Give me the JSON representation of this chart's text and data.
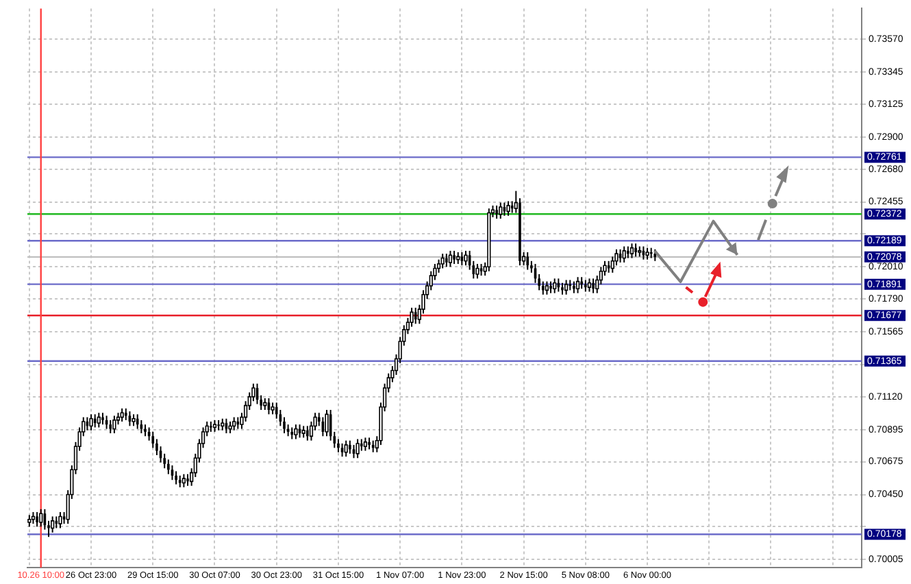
{
  "chart_data": {
    "type": "candlestick",
    "categories": [
      null,
      null,
      null,
      "10.26 10:00",
      null,
      null,
      null,
      null,
      null,
      null,
      null,
      null,
      null,
      null,
      null,
      null,
      "26 Oct 23:00",
      null,
      null,
      null,
      null,
      null,
      null,
      null,
      null,
      null,
      null,
      null,
      null,
      null,
      null,
      null,
      "29 Oct 15:00",
      null,
      null,
      null,
      null,
      null,
      null,
      null,
      null,
      null,
      null,
      null,
      null,
      null,
      null,
      null,
      "30 Oct 07:00",
      null,
      null,
      null,
      null,
      null,
      null,
      null,
      null,
      null,
      null,
      null,
      null,
      null,
      null,
      null,
      "30 Oct 23:00",
      null,
      null,
      null,
      null,
      null,
      null,
      null,
      null,
      null,
      null,
      null,
      null,
      null,
      null,
      null,
      "31 Oct 15:00",
      null,
      null,
      null,
      null,
      null,
      null,
      null,
      null,
      null,
      null,
      null,
      null,
      null,
      null,
      null,
      "1 Nov 07:00",
      null,
      null,
      null,
      null,
      null,
      null,
      null,
      null,
      null,
      null,
      null,
      null,
      null,
      null,
      null,
      "1 Nov 23:00",
      null,
      null,
      null,
      null,
      null,
      null,
      null,
      null,
      null,
      null,
      null,
      null,
      null,
      null,
      null,
      "2 Nov 15:00",
      null,
      null,
      null,
      null,
      null,
      null,
      null,
      null,
      null,
      null,
      null,
      null,
      null,
      null,
      null,
      "5 Nov 08:00",
      null,
      null,
      null,
      null,
      null,
      null,
      null,
      null,
      null,
      null,
      null,
      null,
      null,
      null,
      null,
      "6 Nov 00:00",
      null,
      null,
      null,
      null,
      null,
      null,
      null,
      null,
      null,
      null,
      null,
      null,
      null,
      null,
      null,
      null,
      null,
      null,
      null,
      null,
      null,
      null,
      null,
      null,
      null,
      null,
      null,
      null,
      null,
      null,
      null,
      null,
      null,
      null,
      null,
      null,
      null,
      null,
      null,
      null,
      null,
      null,
      null,
      null,
      null,
      null,
      null,
      null,
      null,
      null,
      null,
      null,
      null,
      null,
      null
    ],
    "ohlc": [
      [
        0.7026,
        0.7031,
        0.7023,
        0.7028
      ],
      [
        0.7028,
        0.7033,
        0.7025,
        0.703
      ],
      [
        0.703,
        0.7033,
        0.7023,
        0.7026
      ],
      [
        0.7026,
        0.7035,
        0.7023,
        0.7032
      ],
      [
        0.7032,
        0.7035,
        0.7021,
        0.7024
      ],
      [
        0.7024,
        0.7027,
        0.7016,
        0.7022
      ],
      [
        0.7022,
        0.703,
        0.7019,
        0.7027
      ],
      [
        0.7027,
        0.703,
        0.7022,
        0.7025
      ],
      [
        0.7025,
        0.7033,
        0.7022,
        0.703
      ],
      [
        0.703,
        0.7033,
        0.7025,
        0.7028
      ],
      [
        0.7028,
        0.7048,
        0.7025,
        0.7045
      ],
      [
        0.7045,
        0.7065,
        0.7042,
        0.7062
      ],
      [
        0.7062,
        0.7081,
        0.7059,
        0.7078
      ],
      [
        0.7078,
        0.7091,
        0.7075,
        0.7088
      ],
      [
        0.7088,
        0.7098,
        0.7085,
        0.7095
      ],
      [
        0.7095,
        0.7098,
        0.7089,
        0.7092
      ],
      [
        0.7092,
        0.71,
        0.7089,
        0.7097
      ],
      [
        0.7097,
        0.71,
        0.7091,
        0.7094
      ],
      [
        0.7094,
        0.7101,
        0.7091,
        0.7098
      ],
      [
        0.7098,
        0.7101,
        0.7093,
        0.7096
      ],
      [
        0.7096,
        0.7099,
        0.709,
        0.7093
      ],
      [
        0.7093,
        0.7096,
        0.7087,
        0.709
      ],
      [
        0.709,
        0.7099,
        0.7087,
        0.7096
      ],
      [
        0.7096,
        0.7101,
        0.7093,
        0.7098
      ],
      [
        0.7098,
        0.7104,
        0.7095,
        0.7101
      ],
      [
        0.7101,
        0.7104,
        0.7096,
        0.7099
      ],
      [
        0.7099,
        0.7102,
        0.7092,
        0.7095
      ],
      [
        0.7095,
        0.71,
        0.7092,
        0.7097
      ],
      [
        0.7097,
        0.71,
        0.709,
        0.7093
      ],
      [
        0.7093,
        0.7096,
        0.7087,
        0.709
      ],
      [
        0.709,
        0.7093,
        0.7085,
        0.7088
      ],
      [
        0.7088,
        0.7091,
        0.7082,
        0.7085
      ],
      [
        0.7085,
        0.7088,
        0.7077,
        0.708
      ],
      [
        0.708,
        0.7083,
        0.7072,
        0.7075
      ],
      [
        0.7075,
        0.7078,
        0.7067,
        0.707
      ],
      [
        0.707,
        0.7073,
        0.7063,
        0.7066
      ],
      [
        0.7066,
        0.7069,
        0.7059,
        0.7062
      ],
      [
        0.7062,
        0.7065,
        0.7055,
        0.7058
      ],
      [
        0.7058,
        0.7061,
        0.7052,
        0.7055
      ],
      [
        0.7055,
        0.7058,
        0.705,
        0.7053
      ],
      [
        0.7053,
        0.7059,
        0.705,
        0.7056
      ],
      [
        0.7056,
        0.7059,
        0.7051,
        0.7054
      ],
      [
        0.7054,
        0.7063,
        0.7051,
        0.706
      ],
      [
        0.706,
        0.7073,
        0.7057,
        0.707
      ],
      [
        0.707,
        0.7083,
        0.7067,
        0.708
      ],
      [
        0.708,
        0.7091,
        0.7077,
        0.7088
      ],
      [
        0.7088,
        0.7095,
        0.7085,
        0.7092
      ],
      [
        0.7092,
        0.7095,
        0.7088,
        0.7091
      ],
      [
        0.7091,
        0.7096,
        0.7088,
        0.7093
      ],
      [
        0.7093,
        0.7096,
        0.7089,
        0.7092
      ],
      [
        0.7092,
        0.7097,
        0.7089,
        0.7094
      ],
      [
        0.7094,
        0.7097,
        0.7087,
        0.709
      ],
      [
        0.709,
        0.7095,
        0.7087,
        0.7092
      ],
      [
        0.7092,
        0.7098,
        0.7089,
        0.7095
      ],
      [
        0.7095,
        0.7098,
        0.709,
        0.7093
      ],
      [
        0.7093,
        0.7101,
        0.709,
        0.7098
      ],
      [
        0.7098,
        0.7109,
        0.7095,
        0.7106
      ],
      [
        0.7106,
        0.7115,
        0.7103,
        0.7112
      ],
      [
        0.7112,
        0.7121,
        0.7109,
        0.7118
      ],
      [
        0.7118,
        0.7121,
        0.7107,
        0.711
      ],
      [
        0.711,
        0.7113,
        0.7103,
        0.7106
      ],
      [
        0.7106,
        0.7111,
        0.7103,
        0.7108
      ],
      [
        0.7108,
        0.7111,
        0.71,
        0.7103
      ],
      [
        0.7103,
        0.7108,
        0.71,
        0.7105
      ],
      [
        0.7105,
        0.7108,
        0.7097,
        0.71
      ],
      [
        0.71,
        0.7103,
        0.7092,
        0.7095
      ],
      [
        0.7095,
        0.7098,
        0.7087,
        0.709
      ],
      [
        0.709,
        0.7093,
        0.7085,
        0.7088
      ],
      [
        0.7088,
        0.7091,
        0.7083,
        0.7086
      ],
      [
        0.7086,
        0.7093,
        0.7083,
        0.709
      ],
      [
        0.709,
        0.7093,
        0.7084,
        0.7087
      ],
      [
        0.7087,
        0.7092,
        0.7084,
        0.7089
      ],
      [
        0.7089,
        0.7092,
        0.7082,
        0.7085
      ],
      [
        0.7085,
        0.7095,
        0.7082,
        0.7092
      ],
      [
        0.7092,
        0.7101,
        0.7089,
        0.7098
      ],
      [
        0.7098,
        0.7101,
        0.7092,
        0.7095
      ],
      [
        0.7095,
        0.7098,
        0.7085,
        0.7088
      ],
      [
        0.7088,
        0.7103,
        0.7085,
        0.71
      ],
      [
        0.71,
        0.7103,
        0.7082,
        0.7085
      ],
      [
        0.7085,
        0.7088,
        0.7077,
        0.708
      ],
      [
        0.708,
        0.7083,
        0.7074,
        0.7077
      ],
      [
        0.7077,
        0.708,
        0.7071,
        0.7074
      ],
      [
        0.7074,
        0.7082,
        0.7071,
        0.7079
      ],
      [
        0.7079,
        0.7082,
        0.7073,
        0.7076
      ],
      [
        0.7076,
        0.7079,
        0.707,
        0.7073
      ],
      [
        0.7073,
        0.7083,
        0.707,
        0.708
      ],
      [
        0.708,
        0.7083,
        0.7075,
        0.7078
      ],
      [
        0.7078,
        0.7084,
        0.7075,
        0.7081
      ],
      [
        0.7081,
        0.7084,
        0.7076,
        0.7079
      ],
      [
        0.7079,
        0.7082,
        0.7074,
        0.7077
      ],
      [
        0.7077,
        0.7085,
        0.7074,
        0.7082
      ],
      [
        0.7082,
        0.7108,
        0.7079,
        0.7105
      ],
      [
        0.7105,
        0.7121,
        0.7102,
        0.7118
      ],
      [
        0.7118,
        0.7128,
        0.7115,
        0.7125
      ],
      [
        0.7125,
        0.7133,
        0.7122,
        0.713
      ],
      [
        0.713,
        0.7141,
        0.7127,
        0.7138
      ],
      [
        0.7138,
        0.7153,
        0.7135,
        0.715
      ],
      [
        0.715,
        0.7161,
        0.7147,
        0.7158
      ],
      [
        0.7158,
        0.7166,
        0.7155,
        0.7163
      ],
      [
        0.7163,
        0.7173,
        0.716,
        0.717
      ],
      [
        0.717,
        0.7173,
        0.7162,
        0.7165
      ],
      [
        0.7165,
        0.7175,
        0.7162,
        0.7172
      ],
      [
        0.7172,
        0.7185,
        0.7169,
        0.7182
      ],
      [
        0.7182,
        0.7191,
        0.7179,
        0.7188
      ],
      [
        0.7188,
        0.7198,
        0.7185,
        0.7195
      ],
      [
        0.7195,
        0.7203,
        0.7192,
        0.72
      ],
      [
        0.72,
        0.7206,
        0.7197,
        0.7203
      ],
      [
        0.7203,
        0.721,
        0.72,
        0.7207
      ],
      [
        0.7207,
        0.721,
        0.7201,
        0.7204
      ],
      [
        0.7204,
        0.7212,
        0.7201,
        0.7209
      ],
      [
        0.7209,
        0.7212,
        0.7203,
        0.7206
      ],
      [
        0.7206,
        0.7211,
        0.7203,
        0.7208
      ],
      [
        0.7208,
        0.7211,
        0.7202,
        0.7205
      ],
      [
        0.7205,
        0.7212,
        0.7202,
        0.7209
      ],
      [
        0.7209,
        0.7212,
        0.7199,
        0.7202
      ],
      [
        0.7202,
        0.7205,
        0.7193,
        0.7196
      ],
      [
        0.7196,
        0.7203,
        0.7193,
        0.72
      ],
      [
        0.72,
        0.7203,
        0.7195,
        0.7198
      ],
      [
        0.7198,
        0.7204,
        0.7195,
        0.7201
      ],
      [
        0.7201,
        0.7241,
        0.7198,
        0.7238
      ],
      [
        0.7238,
        0.7243,
        0.7235,
        0.724
      ],
      [
        0.724,
        0.7243,
        0.7234,
        0.7237
      ],
      [
        0.7237,
        0.7245,
        0.7234,
        0.7242
      ],
      [
        0.7242,
        0.7245,
        0.7236,
        0.7239
      ],
      [
        0.7239,
        0.7246,
        0.7236,
        0.7243
      ],
      [
        0.7243,
        0.7246,
        0.7238,
        0.7241
      ],
      [
        0.7241,
        0.7253,
        0.7238,
        0.7245
      ],
      [
        0.7245,
        0.7248,
        0.7202,
        0.7205
      ],
      [
        0.7205,
        0.7211,
        0.7202,
        0.7208
      ],
      [
        0.7208,
        0.7211,
        0.7199,
        0.7202
      ],
      [
        0.7202,
        0.7205,
        0.7197,
        0.72
      ],
      [
        0.72,
        0.7203,
        0.719,
        0.7193
      ],
      [
        0.7193,
        0.7196,
        0.7185,
        0.7188
      ],
      [
        0.7188,
        0.7191,
        0.7182,
        0.7185
      ],
      [
        0.7185,
        0.7191,
        0.7182,
        0.7188
      ],
      [
        0.7188,
        0.7191,
        0.7183,
        0.7186
      ],
      [
        0.7186,
        0.7193,
        0.7183,
        0.719
      ],
      [
        0.719,
        0.7193,
        0.7184,
        0.7187
      ],
      [
        0.7187,
        0.719,
        0.7182,
        0.7185
      ],
      [
        0.7185,
        0.7192,
        0.7182,
        0.7189
      ],
      [
        0.7189,
        0.7192,
        0.7185,
        0.7188
      ],
      [
        0.7188,
        0.7191,
        0.7183,
        0.7186
      ],
      [
        0.7186,
        0.7194,
        0.7183,
        0.7191
      ],
      [
        0.7191,
        0.7194,
        0.7186,
        0.7189
      ],
      [
        0.7189,
        0.7192,
        0.7184,
        0.7187
      ],
      [
        0.7187,
        0.7193,
        0.7184,
        0.719
      ],
      [
        0.719,
        0.7193,
        0.7183,
        0.7186
      ],
      [
        0.7186,
        0.7195,
        0.7183,
        0.7192
      ],
      [
        0.7192,
        0.7201,
        0.7189,
        0.7198
      ],
      [
        0.7198,
        0.7205,
        0.7195,
        0.7202
      ],
      [
        0.7202,
        0.7205,
        0.7197,
        0.72
      ],
      [
        0.72,
        0.7208,
        0.7197,
        0.7205
      ],
      [
        0.7205,
        0.7213,
        0.7202,
        0.721
      ],
      [
        0.721,
        0.7213,
        0.7204,
        0.7207
      ],
      [
        0.7207,
        0.7215,
        0.7204,
        0.7212
      ],
      [
        0.7212,
        0.7215,
        0.7207,
        0.721
      ],
      [
        0.721,
        0.7217,
        0.7207,
        0.7214
      ],
      [
        0.7214,
        0.7217,
        0.7208,
        0.7211
      ],
      [
        0.7211,
        0.7215,
        0.7208,
        0.7212
      ],
      [
        0.7212,
        0.7215,
        0.7206,
        0.7209
      ],
      [
        0.7209,
        0.7214,
        0.7206,
        0.7211
      ],
      [
        0.7211,
        0.7214,
        0.7207,
        0.721
      ],
      [
        0.721,
        0.7213,
        0.7205,
        0.72078
      ],
      null,
      null,
      null,
      null,
      null,
      null,
      null,
      null,
      null,
      null,
      null,
      null,
      null,
      null,
      null,
      null,
      null,
      null,
      null,
      null,
      null,
      null,
      null,
      null,
      null,
      null,
      null,
      null,
      null,
      null,
      null,
      null,
      null,
      null,
      null,
      null,
      null,
      null,
      null,
      null,
      null,
      null,
      null,
      null,
      null,
      null,
      null,
      null,
      null,
      null,
      null,
      null,
      null
    ],
    "ylim": [
      0.6995,
      0.7378
    ],
    "yticks": [
      {
        "value": 0.70005,
        "label": "0.70005"
      },
      {
        "value": 0.7023,
        "label": null
      },
      {
        "value": 0.7045,
        "label": "0.70450"
      },
      {
        "value": 0.70675,
        "label": "0.70675"
      },
      {
        "value": 0.70895,
        "label": "0.70895"
      },
      {
        "value": 0.7112,
        "label": "0.71120"
      },
      {
        "value": 0.7134,
        "label": null
      },
      {
        "value": 0.71565,
        "label": "0.71565"
      },
      {
        "value": 0.7179,
        "label": "0.71790"
      },
      {
        "value": 0.7201,
        "label": "0.72010"
      },
      {
        "value": 0.72235,
        "label": null
      },
      {
        "value": 0.72455,
        "label": "0.72455"
      },
      {
        "value": 0.7268,
        "label": "0.72680"
      },
      {
        "value": 0.729,
        "label": "0.72900"
      },
      {
        "value": 0.73125,
        "label": "0.73125"
      },
      {
        "value": 0.73345,
        "label": "0.73345"
      },
      {
        "value": 0.7357,
        "label": "0.73570"
      }
    ],
    "grid": true,
    "ref_lines": [
      {
        "axis": "y",
        "value": 0.72761,
        "label": "0.72761",
        "color": "#6b6bc9"
      },
      {
        "axis": "y",
        "value": 0.72372,
        "label": "0.72372",
        "color": "#22b822"
      },
      {
        "axis": "y",
        "value": 0.72189,
        "label": "0.72189",
        "color": "#6b6bc9"
      },
      {
        "axis": "y",
        "value": 0.72078,
        "label": "0.72078",
        "color": "#c0c0c0"
      },
      {
        "axis": "y",
        "value": 0.71891,
        "label": "0.71891",
        "color": "#6b6bc9"
      },
      {
        "axis": "y",
        "value": 0.71677,
        "label": "0.71677",
        "color": "#e8202a"
      },
      {
        "axis": "y",
        "value": 0.71365,
        "label": "0.71365",
        "color": "#6b6bc9"
      },
      {
        "axis": "y",
        "value": 0.70178,
        "label": "0.70178",
        "color": "#6b6bc9"
      },
      {
        "axis": "x",
        "value": "10.26 10:00",
        "color": "#ff4040"
      }
    ]
  }
}
